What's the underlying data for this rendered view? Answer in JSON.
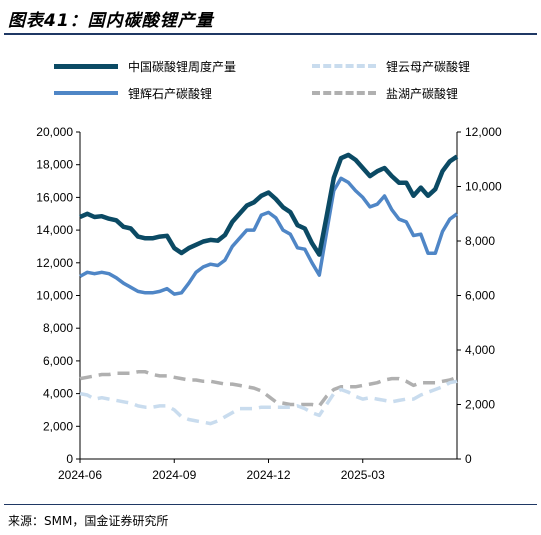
{
  "title": "图表41：国内碳酸锂产量",
  "source": "来源：SMM，国金证券研究所",
  "colors": {
    "total": "#0b4a64",
    "ore": "#4f86c6",
    "mica": "#c9dcee",
    "salt": "#b0b0b0"
  },
  "chart_data": {
    "type": "line",
    "x_ticks": [
      "2024-06",
      "2024-09",
      "2024-12",
      "2025-03"
    ],
    "y_left": {
      "ticks": [
        "0",
        "2,000",
        "4,000",
        "6,000",
        "8,000",
        "10,000",
        "12,000",
        "14,000",
        "16,000",
        "18,000",
        "20,000"
      ],
      "range": [
        0,
        20000
      ]
    },
    "y_right": {
      "ticks": [
        "0",
        "2,000",
        "4,000",
        "6,000",
        "8,000",
        "10,000",
        "12,000"
      ],
      "range": [
        0,
        12000
      ]
    },
    "legend_position": "top",
    "series": [
      {
        "key": "total",
        "name": "中国碳酸锂周度产量",
        "axis": "left",
        "style": "solid-thick",
        "values": [
          14800,
          15000,
          14800,
          14850,
          14700,
          14600,
          14200,
          14100,
          13600,
          13500,
          13500,
          13600,
          13650,
          12900,
          12600,
          12900,
          13100,
          13300,
          13400,
          13350,
          13700,
          14500,
          15000,
          15500,
          15700,
          16100,
          16300,
          15900,
          15400,
          15100,
          14300,
          14100,
          13200,
          12500,
          14800,
          17200,
          18400,
          18600,
          18300,
          17800,
          17300,
          17600,
          17800,
          17300,
          16900,
          16900,
          16100,
          16600,
          16100,
          16500,
          17600,
          18200,
          18500
        ]
      },
      {
        "key": "ore",
        "name": "锂辉石产碳酸锂",
        "axis": "right",
        "style": "solid",
        "values": [
          6700,
          6850,
          6800,
          6850,
          6800,
          6650,
          6450,
          6300,
          6150,
          6100,
          6100,
          6150,
          6250,
          6050,
          6100,
          6450,
          6850,
          7050,
          7150,
          7100,
          7300,
          7800,
          8100,
          8400,
          8400,
          8950,
          9050,
          8850,
          8400,
          8250,
          7750,
          7700,
          7200,
          6750,
          8300,
          9850,
          10300,
          10150,
          9850,
          9600,
          9250,
          9350,
          9650,
          9150,
          8800,
          8700,
          8200,
          8250,
          7550,
          7550,
          8350,
          8800,
          9000
        ]
      },
      {
        "key": "mica",
        "name": "锂云母产碳酸锂",
        "axis": "right",
        "style": "dashed",
        "values": [
          2400,
          2350,
          2200,
          2250,
          2200,
          2150,
          2100,
          2050,
          1950,
          1900,
          1900,
          1950,
          1950,
          1800,
          1550,
          1450,
          1400,
          1350,
          1300,
          1400,
          1550,
          1700,
          1850,
          1850,
          1850,
          1900,
          1900,
          1900,
          1900,
          1900,
          1950,
          1850,
          1700,
          1600,
          2000,
          2400,
          2550,
          2450,
          2300,
          2200,
          2250,
          2200,
          2150,
          2100,
          2150,
          2200,
          2200,
          2350,
          2450,
          2550,
          2650,
          2800,
          2850
        ]
      },
      {
        "key": "salt",
        "name": "盐湖产碳酸锂",
        "axis": "right",
        "style": "dashed",
        "values": [
          2950,
          3000,
          3050,
          3100,
          3100,
          3150,
          3150,
          3150,
          3200,
          3200,
          3100,
          3050,
          3050,
          3000,
          2950,
          2900,
          2900,
          2850,
          2850,
          2800,
          2750,
          2750,
          2700,
          2650,
          2600,
          2500,
          2300,
          2100,
          2050,
          2000,
          2000,
          2000,
          2000,
          1950,
          2300,
          2550,
          2650,
          2650,
          2650,
          2700,
          2750,
          2800,
          2900,
          2950,
          2950,
          2850,
          2700,
          2800,
          2800,
          2800,
          2850,
          2900,
          3000
        ]
      }
    ]
  }
}
